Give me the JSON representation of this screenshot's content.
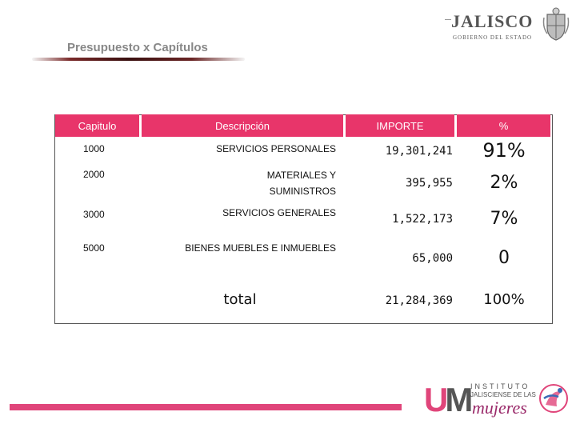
{
  "slide": {
    "title": "Presupuesto x Capítulos"
  },
  "logos": {
    "jalisco_word": "JALISCO",
    "jalisco_sub": "GOBIERNO DEL ESTADO",
    "institute_line1": "INSTITUTO",
    "institute_line2": "JALISCIENSE DE LAS",
    "institute_line3": "mujeres",
    "institute_mark_u": "U",
    "institute_mark_m": "M"
  },
  "table": {
    "headers": {
      "capitulo": "Capitulo",
      "descripcion": "Descripción",
      "importe": "IMPORTE",
      "porcentaje": "%"
    },
    "rows": [
      {
        "capitulo": "1000",
        "descripcion": "SERVICIOS PERSONALES",
        "importe": "19,301,241",
        "porcentaje": "91%"
      },
      {
        "capitulo": "2000",
        "descripcion_l1": "MATERIALES Y",
        "descripcion_l2": "SUMINISTROS",
        "importe": "395,955",
        "porcentaje": "2%"
      },
      {
        "capitulo": "3000",
        "descripcion": "SERVICIOS GENERALES",
        "importe": "1,522,173",
        "porcentaje": "7%"
      },
      {
        "capitulo": "5000",
        "descripcion": "BIENES MUEBLES E INMUEBLES",
        "importe": "65,000",
        "porcentaje": "0"
      }
    ],
    "total": {
      "label": "total",
      "importe": "21,284,369",
      "porcentaje": "100%"
    }
  },
  "colors": {
    "header_bg": "#e8356a",
    "bottom_bar": "#e0457a"
  }
}
